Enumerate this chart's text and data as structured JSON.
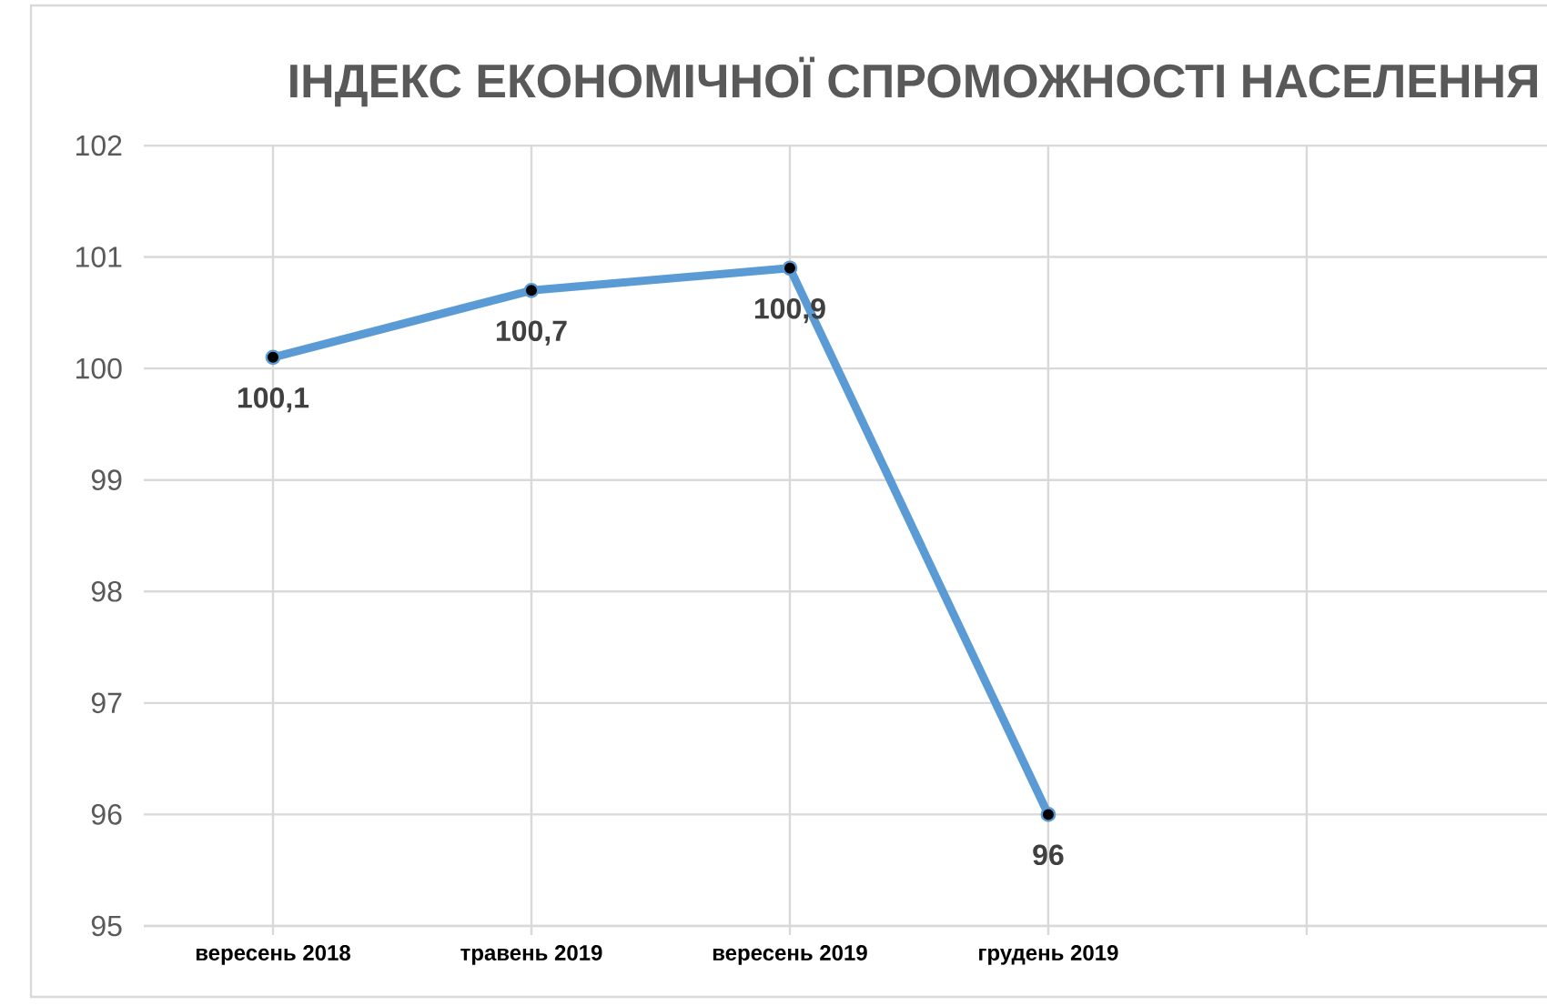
{
  "chart_data": {
    "type": "line",
    "title": "ІНДЕКС ЕКОНОМІЧНОЇ СПРОМОЖНОСТІ НАСЕЛЕННЯ",
    "categories": [
      "вересень 2018",
      "травень 2019",
      "вересень 2019",
      "грудень 2019",
      null
    ],
    "values": [
      100.1,
      100.7,
      100.9,
      96,
      null
    ],
    "value_labels": [
      "100,1",
      "100,7",
      "100,9",
      "96",
      null
    ],
    "color": "#5b9bd5",
    "ylim": [
      95,
      102
    ],
    "yticks": [
      95,
      96,
      97,
      98,
      99,
      100,
      101,
      102
    ],
    "grid": true,
    "marker": "circle",
    "line_style": "solid"
  }
}
